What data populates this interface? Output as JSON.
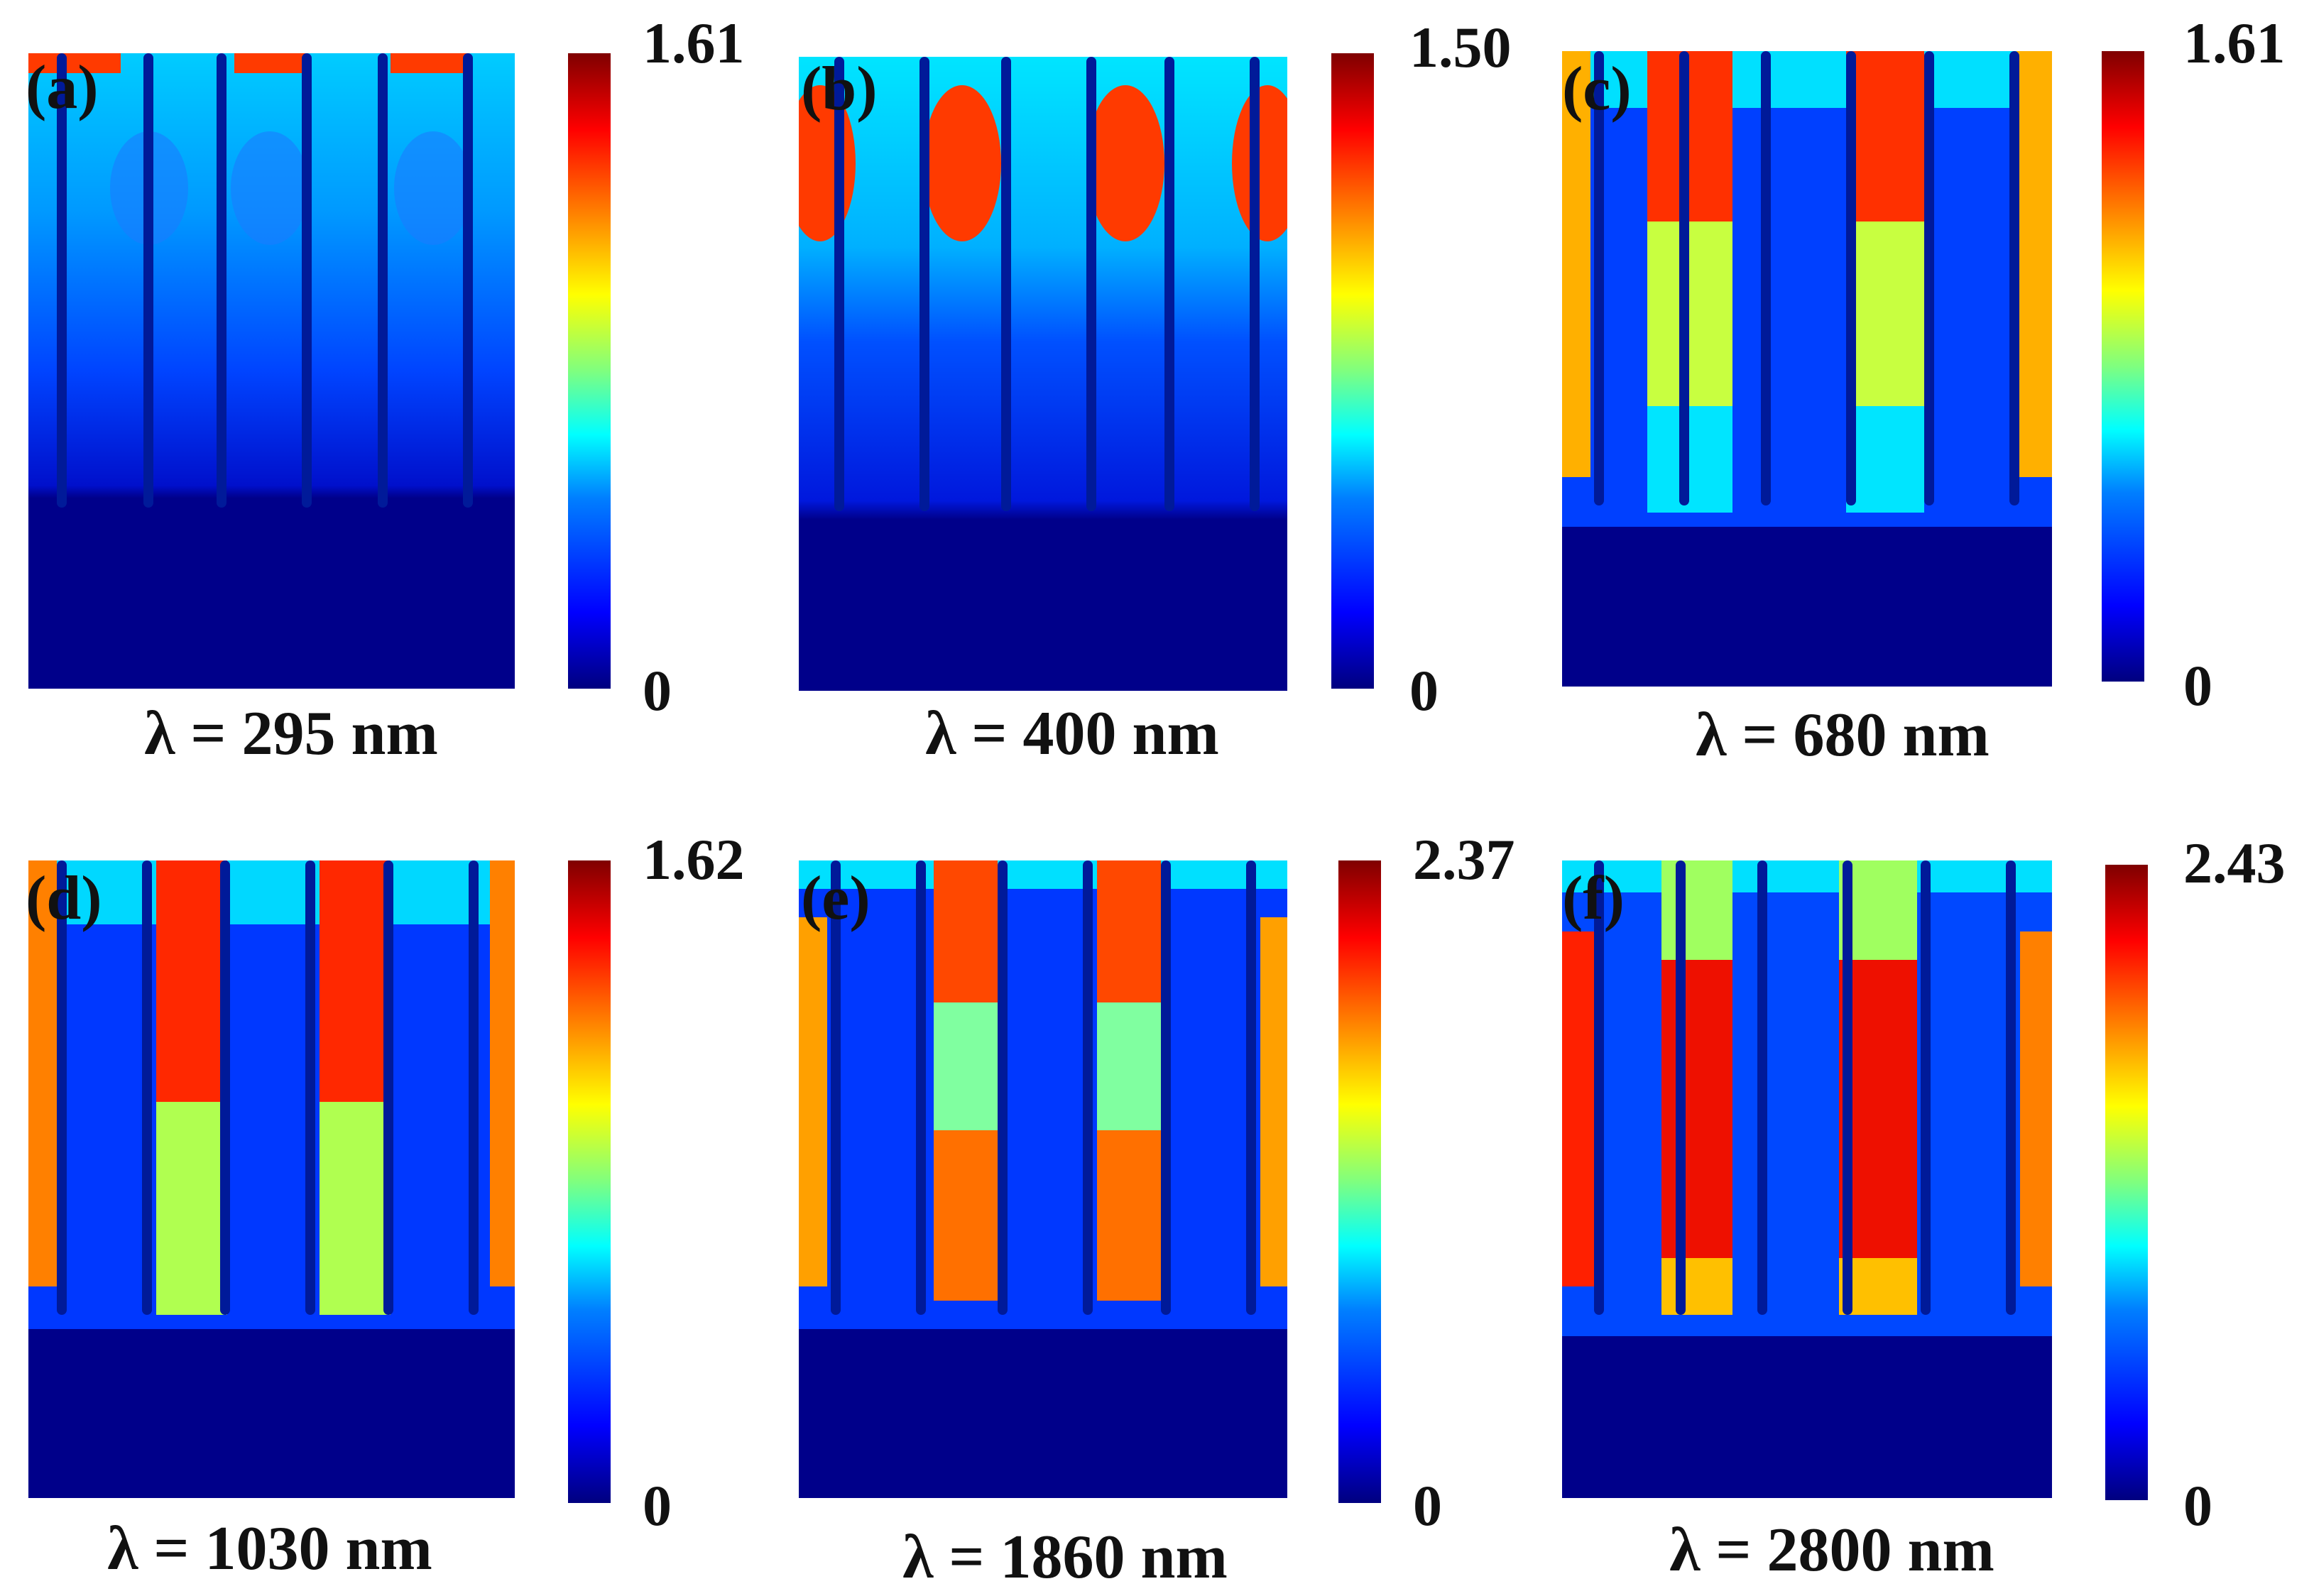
{
  "chart_data": [
    {
      "type": "heatmap",
      "panel_label": "(a)",
      "caption": "λ = 295 nm",
      "colorbar": {
        "max": "1.61",
        "min": "0",
        "range": [
          0,
          1.61
        ]
      },
      "colormap": "jet"
    },
    {
      "type": "heatmap",
      "panel_label": "(b)",
      "caption": "λ = 400 nm",
      "colorbar": {
        "max": "1.50",
        "min": "0",
        "range": [
          0,
          1.5
        ]
      },
      "colormap": "jet"
    },
    {
      "type": "heatmap",
      "panel_label": "(c)",
      "caption": "λ = 680 nm",
      "colorbar": {
        "max": "1.61",
        "min": "0",
        "range": [
          0,
          1.61
        ]
      },
      "colormap": "jet"
    },
    {
      "type": "heatmap",
      "panel_label": "(d)",
      "caption": "λ = 1030 nm",
      "colorbar": {
        "max": "1.62",
        "min": "0",
        "range": [
          0,
          1.62
        ]
      },
      "colormap": "jet"
    },
    {
      "type": "heatmap",
      "panel_label": "(e)",
      "caption": "λ = 1860 nm",
      "colorbar": {
        "max": "2.37",
        "min": "0",
        "range": [
          0,
          2.37
        ]
      },
      "colormap": "jet"
    },
    {
      "type": "heatmap",
      "panel_label": "(f)",
      "caption": "λ = 2800 nm",
      "colorbar": {
        "max": "2.43",
        "min": "0",
        "range": [
          0,
          2.43
        ]
      },
      "colormap": "jet"
    }
  ]
}
